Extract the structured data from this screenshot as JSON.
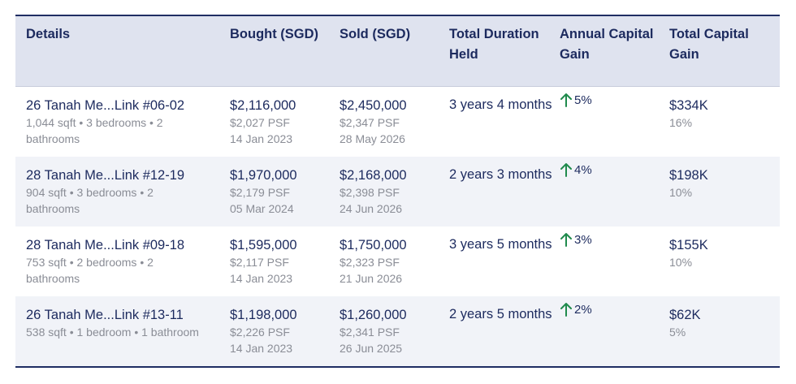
{
  "headers": {
    "details": "Details",
    "bought": "Bought (SGD)",
    "sold": "Sold (SGD)",
    "duration": "Total Duration Held",
    "annual_gain": "Annual Capital Gain",
    "total_gain": "Total Capital Gain"
  },
  "colors": {
    "accent_navy": "#1c2a5e",
    "header_bg": "#dfe3ef",
    "alt_row_bg": "#f1f3f8",
    "gain_up": "#1f8a4c",
    "muted_text": "#8a8d96"
  },
  "rows": [
    {
      "address": "26 Tanah Me...Link #06-02",
      "specs": "1,044 sqft • 3 bedrooms • 2 bathrooms",
      "bought_price": "$2,116,000",
      "bought_psf": "$2,027 PSF",
      "bought_date": "14 Jan 2023",
      "sold_price": "$2,450,000",
      "sold_psf": "$2,347 PSF",
      "sold_date": "28 May 2026",
      "duration": "3 years 4 months",
      "annual_gain": "5%",
      "annual_gain_icon": "arrow-up-icon",
      "total_gain": "$334K",
      "total_gain_pct": "16%"
    },
    {
      "address": "28 Tanah Me...Link #12-19",
      "specs": "904 sqft • 3 bedrooms • 2 bathrooms",
      "bought_price": "$1,970,000",
      "bought_psf": "$2,179 PSF",
      "bought_date": "05 Mar 2024",
      "sold_price": "$2,168,000",
      "sold_psf": "$2,398 PSF",
      "sold_date": "24 Jun 2026",
      "duration": "2 years 3 months",
      "annual_gain": "4%",
      "annual_gain_icon": "arrow-up-icon",
      "total_gain": "$198K",
      "total_gain_pct": "10%"
    },
    {
      "address": "28 Tanah Me...Link #09-18",
      "specs": "753 sqft • 2 bedrooms • 2 bathrooms",
      "bought_price": "$1,595,000",
      "bought_psf": "$2,117 PSF",
      "bought_date": "14 Jan 2023",
      "sold_price": "$1,750,000",
      "sold_psf": "$2,323 PSF",
      "sold_date": "21 Jun 2026",
      "duration": "3 years 5 months",
      "annual_gain": "3%",
      "annual_gain_icon": "arrow-up-icon",
      "total_gain": "$155K",
      "total_gain_pct": "10%"
    },
    {
      "address": "26 Tanah Me...Link #13-11",
      "specs": "538 sqft • 1 bedroom • 1 bathroom",
      "bought_price": "$1,198,000",
      "bought_psf": "$2,226 PSF",
      "bought_date": "14 Jan 2023",
      "sold_price": "$1,260,000",
      "sold_psf": "$2,341 PSF",
      "sold_date": "26 Jun 2025",
      "duration": "2 years 5 months",
      "annual_gain": "2%",
      "annual_gain_icon": "arrow-up-icon",
      "total_gain": "$62K",
      "total_gain_pct": "5%"
    }
  ]
}
